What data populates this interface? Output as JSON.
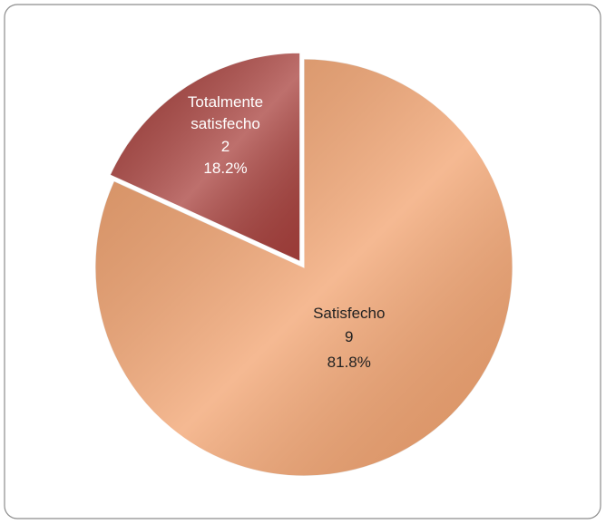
{
  "chart_data": {
    "type": "pie",
    "categories": [
      "Satisfecho",
      "Totalmente satisfecho"
    ],
    "counts": [
      9,
      2
    ],
    "values": [
      81.8,
      18.2
    ],
    "value_labels": [
      "81.8%",
      "18.2%"
    ],
    "colors": [
      "#f2a26e",
      "#a8403c"
    ]
  }
}
